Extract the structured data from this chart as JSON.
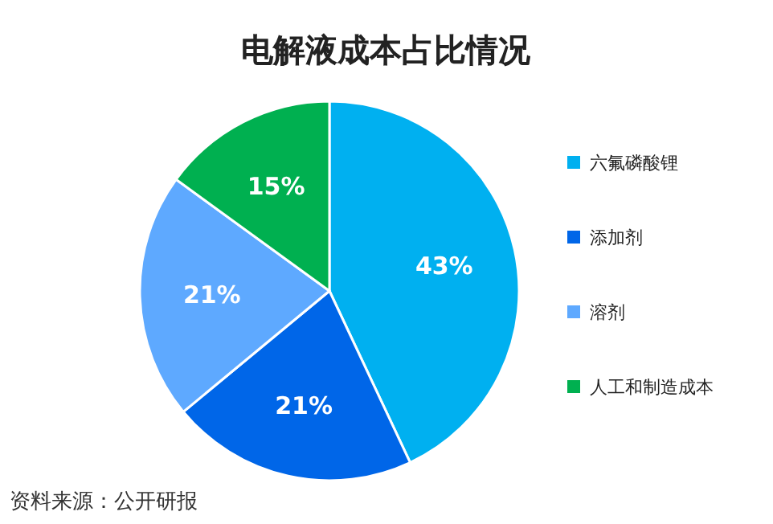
{
  "chart_data": {
    "type": "pie",
    "title": "电解液成本占比情况",
    "categories": [
      "六氟磷酸锂",
      "添加剂",
      "溶剂",
      "人工和制造成本"
    ],
    "values": [
      43,
      21,
      21,
      15
    ],
    "value_labels": [
      "43%",
      "21%",
      "21%",
      "15%"
    ],
    "colors": [
      "#00b0f0",
      "#0066e8",
      "#5ea9ff",
      "#00b050"
    ],
    "legend": "right",
    "annotations": [
      "资料来源：公开研报"
    ]
  }
}
